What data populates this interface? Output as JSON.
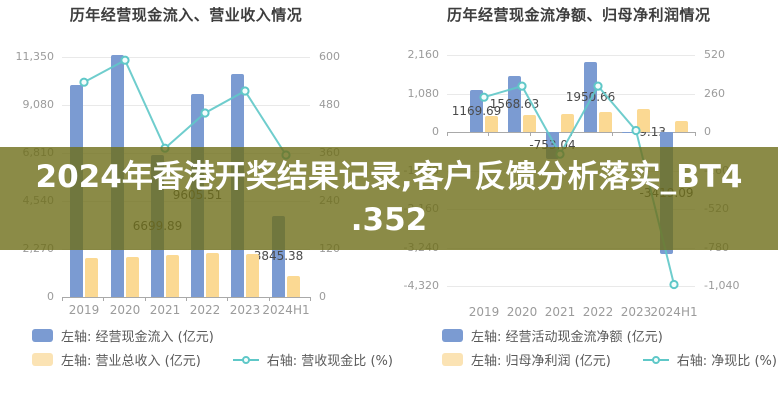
{
  "banner": {
    "line1": "2024年香港开奖结果记录,客户反馈分析落实_BT4",
    "line2": ".352",
    "bg_color": "#6E6E19",
    "bg_opacity": 0.8,
    "text_color": "#ffffff"
  },
  "chart_data": [
    {
      "type": "bar",
      "title": "历年经营现金流入、营业收入情况",
      "categories": [
        "2019",
        "2020",
        "2021",
        "2022",
        "2023",
        "2024H1"
      ],
      "left_axis": {
        "min": 0,
        "max": 11350,
        "ticks": [
          "11,350",
          "9,080",
          "6,810",
          "4,540",
          "2,270",
          "0"
        ]
      },
      "right_axis": {
        "min": 0,
        "max": 600,
        "ticks": [
          "600",
          "480",
          "360",
          "240",
          "120",
          "0"
        ]
      },
      "grid": true,
      "legend_position": "bottom",
      "series": [
        {
          "name": "左轴: 经营现金流入 (亿元)",
          "type": "bar",
          "axis": "left",
          "color": "#7B9BD2",
          "values": [
            10030,
            11450,
            6699.89,
            9605.51,
            10550,
            3845.38
          ],
          "labels": [
            "",
            "",
            "6699.89",
            "9605.51",
            "",
            "3845.38"
          ]
        },
        {
          "name": "左轴: 营业总收入 (亿元)",
          "type": "bar",
          "axis": "left",
          "color": "#FBD993",
          "legend_color": "#FBE3B4",
          "values": [
            1850,
            1900,
            1990,
            2080,
            2030,
            1000
          ],
          "labels": [
            "",
            "",
            "",
            "",
            "",
            ""
          ]
        },
        {
          "name": "右轴: 营收现金比 (%)",
          "type": "line",
          "axis": "right",
          "color": "#5FC8C8",
          "values": [
            537,
            592,
            372,
            460,
            515,
            355
          ]
        }
      ]
    },
    {
      "type": "bar",
      "title": "历年经营现金流净额、归母净利润情况",
      "categories": [
        "2019",
        "2020",
        "2021",
        "2022",
        "2023",
        "2024H1"
      ],
      "left_axis": {
        "min": -4320,
        "max": 2160,
        "ticks": [
          "2,160",
          "1,080",
          "0",
          "-1,080",
          "-2,160",
          "-3,240",
          "-4,320"
        ]
      },
      "right_axis": {
        "min": -1040,
        "max": 520,
        "ticks": [
          "520",
          "260",
          "0",
          "-260",
          "-520",
          "-780",
          "-1,040"
        ]
      },
      "grid": true,
      "legend_position": "bottom",
      "series": [
        {
          "name": "左轴: 经营活动现金流净额 (亿元)",
          "type": "bar",
          "axis": "left",
          "color": "#7B9BD2",
          "values": [
            1169.69,
            1568.63,
            -753.04,
            1950.66,
            -9.13,
            -3419.09
          ],
          "labels": [
            "1169.69",
            "1568.63",
            "-753.04",
            "1950.66",
            "-9.13",
            "-3419.09"
          ]
        },
        {
          "name": "左轴: 归母净利润 (亿元)",
          "type": "bar",
          "axis": "left",
          "color": "#FBD993",
          "legend_color": "#FBE3B4",
          "values": [
            450,
            480,
            505,
            560,
            645,
            310
          ],
          "labels": [
            "",
            "",
            "",
            "",
            "",
            ""
          ]
        },
        {
          "name": "右轴: 净现比 (%)",
          "type": "line",
          "axis": "right",
          "color": "#5FC8C8",
          "values": [
            235,
            310,
            -150,
            310,
            10,
            -1030
          ]
        }
      ]
    }
  ]
}
